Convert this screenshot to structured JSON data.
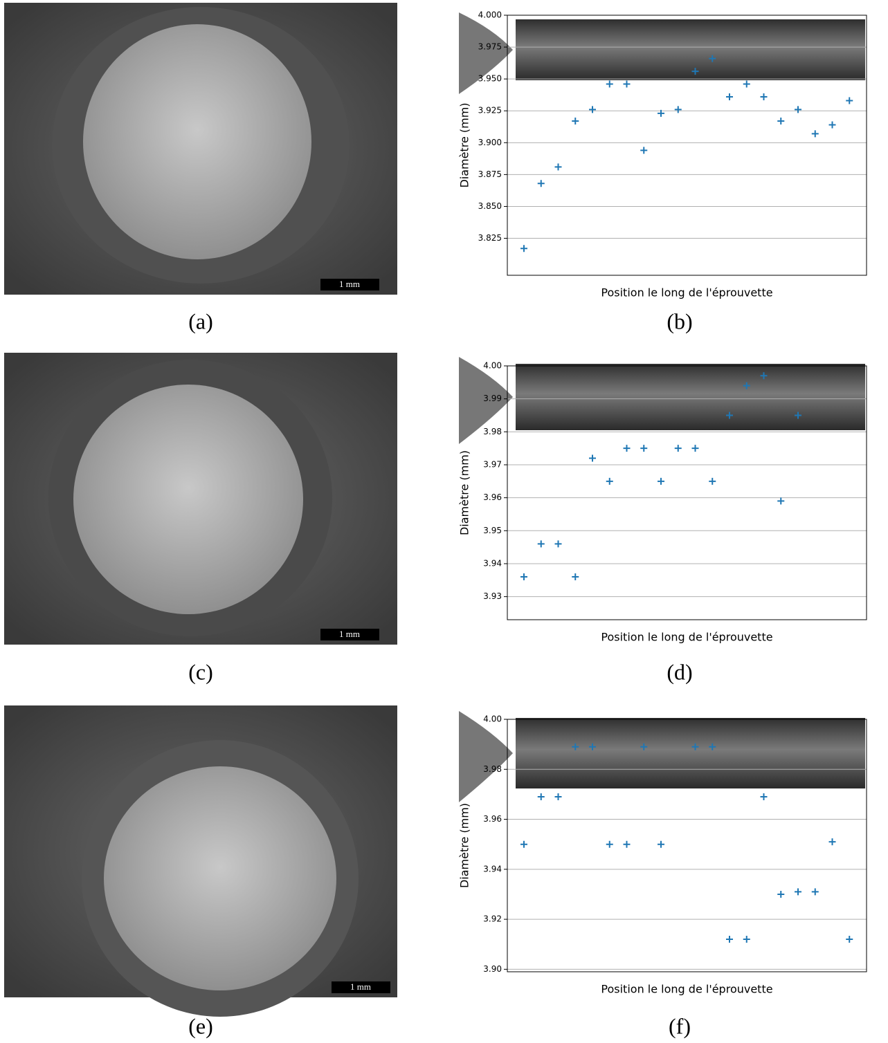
{
  "figure": {
    "labels": [
      "(a)",
      "(b)",
      "(c)",
      "(d)",
      "(e)",
      "(f)"
    ],
    "scale_bars": [
      "1 mm",
      "1 mm",
      "1 mm"
    ]
  },
  "chart_data": [
    {
      "type": "scatter",
      "marker": "+",
      "color": "#1f77b4",
      "grid": true,
      "x_label": "Position le long de l'éprouvette",
      "y_label": "Diamètre (mm)",
      "categories": [
        null,
        null,
        null,
        null,
        null,
        null,
        null,
        null,
        null,
        null,
        null,
        null,
        null,
        null,
        null,
        null,
        null,
        null,
        null,
        null
      ],
      "values": [
        3.817,
        3.868,
        3.881,
        3.917,
        3.926,
        3.946,
        3.946,
        3.894,
        3.923,
        3.926,
        3.956,
        3.966,
        3.936,
        3.946,
        3.936,
        3.917,
        3.926,
        3.907,
        3.914,
        3.933
      ],
      "ylim": [
        3.796,
        4.0
      ],
      "yticks": [
        {
          "value": 4.0,
          "label": "4.000"
        },
        3.975,
        {
          "value": 3.95,
          "label": "3.950"
        },
        3.925,
        {
          "value": 3.9,
          "label": "3.900"
        },
        3.875,
        {
          "value": 3.85,
          "label": "3.850"
        },
        3.825
      ]
    },
    {
      "type": "scatter",
      "marker": "+",
      "color": "#1f77b4",
      "grid": true,
      "x_label": "Position le long de l'éprouvette",
      "y_label": "Diamètre (mm)",
      "categories": [
        null,
        null,
        null,
        null,
        null,
        null,
        null,
        null,
        null,
        null,
        null,
        null,
        null,
        null,
        null,
        null,
        null,
        null,
        null,
        null
      ],
      "values": [
        3.936,
        3.946,
        3.946,
        3.936,
        3.972,
        3.965,
        3.975,
        3.975,
        3.965,
        3.975,
        3.975,
        3.965,
        3.985,
        3.994,
        3.997,
        3.959,
        3.985,
        null,
        null,
        null
      ],
      "ylim": [
        3.923,
        4.0
      ],
      "yticks": [
        {
          "value": 4.0,
          "label": "4.00"
        },
        3.99,
        3.98,
        3.97,
        3.96,
        3.95,
        3.94,
        3.93
      ]
    },
    {
      "type": "scatter",
      "marker": "+",
      "color": "#1f77b4",
      "grid": true,
      "x_label": "Position le long de l'éprouvette",
      "y_label": "Diamètre (mm)",
      "categories": [
        null,
        null,
        null,
        null,
        null,
        null,
        null,
        null,
        null,
        null,
        null,
        null,
        null,
        null,
        null,
        null,
        null,
        null,
        null,
        null
      ],
      "values": [
        3.95,
        3.969,
        3.969,
        3.989,
        3.989,
        3.95,
        3.95,
        3.989,
        3.95,
        null,
        3.989,
        3.989,
        3.912,
        3.912,
        3.969,
        3.93,
        3.931,
        3.931,
        3.951,
        3.912
      ],
      "ylim": [
        3.899,
        4.0
      ],
      "yticks": [
        {
          "value": 4.0,
          "label": "4.00"
        },
        3.98,
        3.96,
        3.94,
        3.92,
        {
          "value": 3.9,
          "label": "3.90"
        }
      ]
    }
  ]
}
